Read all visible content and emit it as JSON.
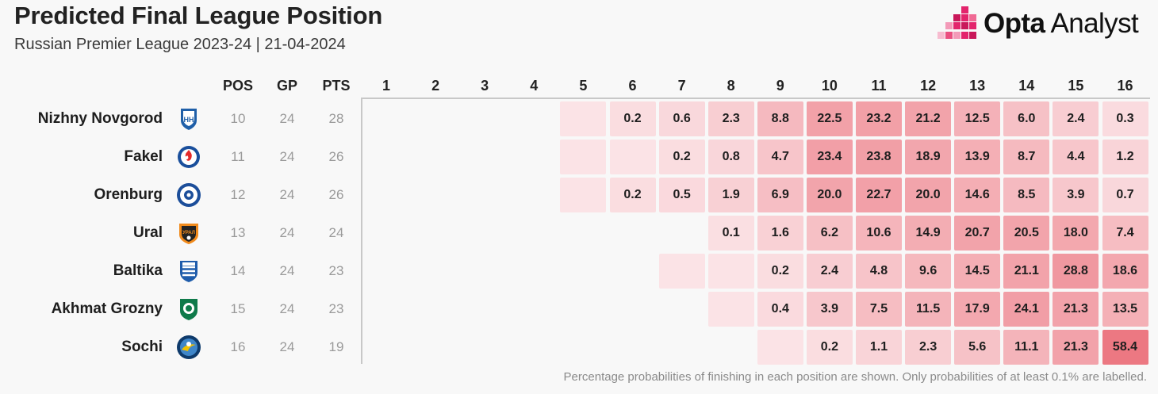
{
  "header": {
    "title": "Predicted Final League Position",
    "subtitle": "Russian Premier League 2023-24 | 21-04-2024",
    "brand_bold": "Opta",
    "brand_light": "Analyst"
  },
  "footnote": "Percentage probabilities of finishing in each position are shown. Only probabilities of at least 0.1% are labelled.",
  "colors": {
    "cell_base": "#fbe3e6",
    "cell_max": "#ec7882",
    "logo_accent": "#e3246c"
  },
  "chart_data": {
    "type": "heatmap",
    "stat_headers": [
      "POS",
      "GP",
      "PTS"
    ],
    "positions": [
      "1",
      "2",
      "3",
      "4",
      "5",
      "6",
      "7",
      "8",
      "9",
      "10",
      "11",
      "12",
      "13",
      "14",
      "15",
      "16"
    ],
    "teams": [
      {
        "name": "Nizhny Novgorod",
        "pos": "10",
        "gp": "24",
        "pts": "28",
        "crest": "nizhny-crest-icon",
        "probs": [
          null,
          null,
          null,
          null,
          "",
          "0.2",
          "0.6",
          "2.3",
          "8.8",
          "22.5",
          "23.2",
          "21.2",
          "12.5",
          "6.0",
          "2.4",
          "0.3"
        ]
      },
      {
        "name": "Fakel",
        "pos": "11",
        "gp": "24",
        "pts": "26",
        "crest": "fakel-crest-icon",
        "probs": [
          null,
          null,
          null,
          null,
          "",
          "",
          "0.2",
          "0.8",
          "4.7",
          "23.4",
          "23.8",
          "18.9",
          "13.9",
          "8.7",
          "4.4",
          "1.2"
        ]
      },
      {
        "name": "Orenburg",
        "pos": "12",
        "gp": "24",
        "pts": "26",
        "crest": "orenburg-crest-icon",
        "probs": [
          null,
          null,
          null,
          null,
          "",
          "0.2",
          "0.5",
          "1.9",
          "6.9",
          "20.0",
          "22.7",
          "20.0",
          "14.6",
          "8.5",
          "3.9",
          "0.7"
        ]
      },
      {
        "name": "Ural",
        "pos": "13",
        "gp": "24",
        "pts": "24",
        "crest": "ural-crest-icon",
        "probs": [
          null,
          null,
          null,
          null,
          null,
          null,
          null,
          "0.1",
          "1.6",
          "6.2",
          "10.6",
          "14.9",
          "20.7",
          "20.5",
          "18.0",
          "7.4"
        ]
      },
      {
        "name": "Baltika",
        "pos": "14",
        "gp": "24",
        "pts": "23",
        "crest": "baltika-crest-icon",
        "probs": [
          null,
          null,
          null,
          null,
          null,
          null,
          "",
          "",
          "0.2",
          "2.4",
          "4.8",
          "9.6",
          "14.5",
          "21.1",
          "28.8",
          "18.6"
        ]
      },
      {
        "name": "Akhmat Grozny",
        "pos": "15",
        "gp": "24",
        "pts": "23",
        "crest": "akhmat-crest-icon",
        "probs": [
          null,
          null,
          null,
          null,
          null,
          null,
          null,
          "",
          "0.4",
          "3.9",
          "7.5",
          "11.5",
          "17.9",
          "24.1",
          "21.3",
          "13.5"
        ]
      },
      {
        "name": "Sochi",
        "pos": "16",
        "gp": "24",
        "pts": "19",
        "crest": "sochi-crest-icon",
        "probs": [
          null,
          null,
          null,
          null,
          null,
          null,
          null,
          null,
          "",
          "0.2",
          "1.1",
          "2.3",
          "5.6",
          "11.1",
          "21.3",
          "58.4"
        ]
      }
    ]
  }
}
